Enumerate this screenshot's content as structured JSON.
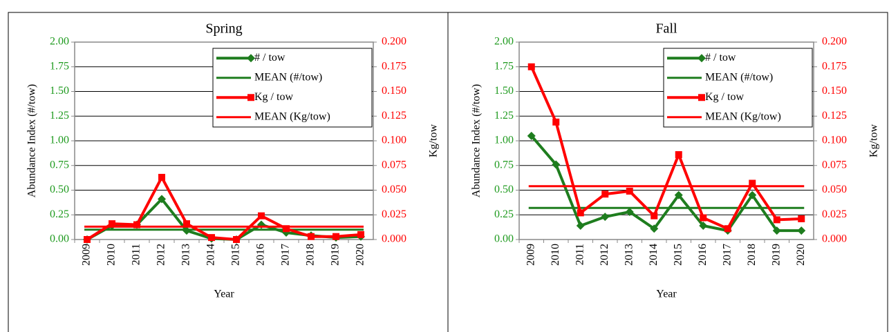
{
  "chart_data": [
    {
      "type": "line",
      "title": "Spring",
      "x_label": "Year",
      "y_label": "Abundance Index (#/tow)",
      "y2_label": "Kg/tow",
      "categories": [
        "2009",
        "2010",
        "2011",
        "2012",
        "2013",
        "2014",
        "2015",
        "2016",
        "2017",
        "2018",
        "2019",
        "2020"
      ],
      "series": [
        {
          "name": "# / tow",
          "color": "#1e7d1e",
          "marker": "diamond",
          "values": [
            0.0,
            0.14,
            0.15,
            0.41,
            0.09,
            0.01,
            0.0,
            0.15,
            0.07,
            0.04,
            0.02,
            0.03
          ]
        },
        {
          "name": "MEAN (#/tow)",
          "color": "#1e7d1e",
          "value": 0.1
        },
        {
          "name": "Kg / tow",
          "color": "#ff0000",
          "marker": "square",
          "axis": "y2",
          "values": [
            0.0,
            0.016,
            0.015,
            0.063,
            0.016,
            0.002,
            0.0,
            0.024,
            0.011,
            0.003,
            0.003,
            0.005
          ]
        },
        {
          "name": "MEAN (Kg/tow)",
          "color": "#ff0000",
          "axis": "y2",
          "value": 0.013
        }
      ],
      "ylim": [
        0,
        2
      ],
      "yticks": [
        {
          "value": 0,
          "label": "0.00"
        },
        {
          "value": 0.25,
          "label": "0.25"
        },
        {
          "value": 0.5,
          "label": "0.50"
        },
        {
          "value": 0.75,
          "label": "0.75"
        },
        {
          "value": 1,
          "label": "1.00"
        },
        {
          "value": 1.25,
          "label": "1.25"
        },
        {
          "value": 1.5,
          "label": "1.50"
        },
        {
          "value": 1.75,
          "label": "1.75"
        },
        {
          "value": 2,
          "label": "2.00"
        }
      ],
      "y2lim": [
        0,
        0.2
      ],
      "y2ticks": [
        {
          "value": 0,
          "label": "0.000"
        },
        {
          "value": 0.025,
          "label": "0.025"
        },
        {
          "value": 0.05,
          "label": "0.050"
        },
        {
          "value": 0.075,
          "label": "0.075"
        },
        {
          "value": 0.1,
          "label": "0.100"
        },
        {
          "value": 0.125,
          "label": "0.125"
        },
        {
          "value": 0.15,
          "label": "0.150"
        },
        {
          "value": 0.175,
          "label": "0.175"
        },
        {
          "value": 0.2,
          "label": "0.200"
        }
      ],
      "grid": true,
      "legend": "upper right"
    },
    {
      "type": "line",
      "title": "Fall",
      "x_label": "Year",
      "y_label": "Abundance Index (#/tow)",
      "y2_label": "Kg/tow",
      "categories": [
        "2009",
        "2010",
        "2011",
        "2012",
        "2013",
        "2014",
        "2015",
        "2016",
        "2017",
        "2018",
        "2019",
        "2020"
      ],
      "series": [
        {
          "name": "# / tow",
          "color": "#1e7d1e",
          "marker": "diamond",
          "values": [
            1.05,
            0.76,
            0.14,
            0.23,
            0.28,
            0.11,
            0.45,
            0.14,
            0.09,
            0.45,
            0.09,
            0.09
          ]
        },
        {
          "name": "MEAN (#/tow)",
          "color": "#1e7d1e",
          "value": 0.32
        },
        {
          "name": "Kg / tow",
          "color": "#ff0000",
          "marker": "square",
          "axis": "y2",
          "values": [
            0.175,
            0.119,
            0.027,
            0.046,
            0.049,
            0.024,
            0.086,
            0.022,
            0.011,
            0.057,
            0.02,
            0.021
          ]
        },
        {
          "name": "MEAN (Kg/tow)",
          "color": "#ff0000",
          "axis": "y2",
          "value": 0.054
        }
      ],
      "ylim": [
        0,
        2
      ],
      "yticks": [
        {
          "value": 0,
          "label": "0.00"
        },
        {
          "value": 0.25,
          "label": "0.25"
        },
        {
          "value": 0.5,
          "label": "0.50"
        },
        {
          "value": 0.75,
          "label": "0.75"
        },
        {
          "value": 1,
          "label": "1.00"
        },
        {
          "value": 1.25,
          "label": "1.25"
        },
        {
          "value": 1.5,
          "label": "1.50"
        },
        {
          "value": 1.75,
          "label": "1.75"
        },
        {
          "value": 2,
          "label": "2.00"
        }
      ],
      "y2lim": [
        0,
        0.2
      ],
      "y2ticks": [
        {
          "value": 0,
          "label": "0.000"
        },
        {
          "value": 0.025,
          "label": "0.025"
        },
        {
          "value": 0.05,
          "label": "0.050"
        },
        {
          "value": 0.075,
          "label": "0.075"
        },
        {
          "value": 0.1,
          "label": "0.100"
        },
        {
          "value": 0.125,
          "label": "0.125"
        },
        {
          "value": 0.15,
          "label": "0.150"
        },
        {
          "value": 0.175,
          "label": "0.175"
        },
        {
          "value": 0.2,
          "label": "0.200"
        }
      ],
      "grid": true,
      "legend": "upper right"
    }
  ]
}
